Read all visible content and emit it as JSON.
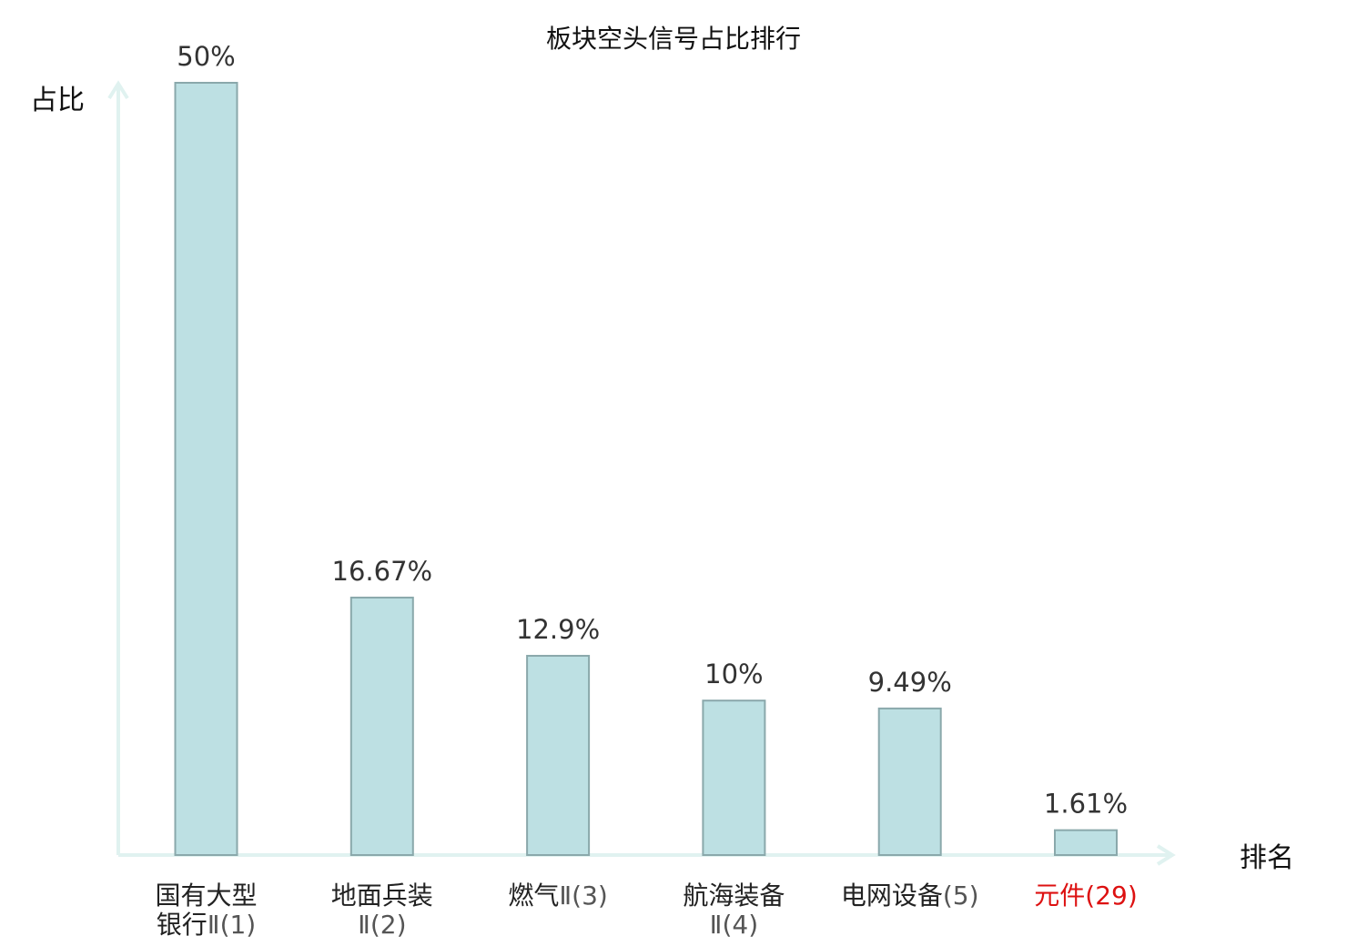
{
  "chart_data": {
    "type": "bar",
    "title": "板块空头信号占比排行",
    "xlabel": "排名",
    "ylabel": "占比",
    "categories": [
      {
        "name_lines": [
          "国有大型",
          "银行"
        ],
        "rank": "Ⅱ(1)",
        "highlight": false
      },
      {
        "name_lines": [
          "地面兵装"
        ],
        "rank": "Ⅱ(2)",
        "highlight": false
      },
      {
        "name_lines": [
          "燃气"
        ],
        "rank": "Ⅱ(3)",
        "highlight": false
      },
      {
        "name_lines": [
          "航海装备"
        ],
        "rank": "Ⅱ(4)",
        "highlight": false
      },
      {
        "name_lines": [
          "电网设备"
        ],
        "rank": "(5)",
        "highlight": false
      },
      {
        "name_lines": [
          "元件"
        ],
        "rank": "(29)",
        "highlight": true
      }
    ],
    "values": [
      50,
      16.67,
      12.9,
      10,
      9.49,
      1.61
    ],
    "value_labels": [
      "50%",
      "16.67%",
      "12.9%",
      "10%",
      "9.49%",
      "1.61%"
    ],
    "ylim": [
      0,
      50
    ],
    "grid": false,
    "legend": "none",
    "colors": {
      "bar_fill": "#bde0e3",
      "bar_stroke": "#8aa8ab",
      "axis": "#e0f2f0",
      "label_text": "#222222",
      "rank_text": "#555555",
      "highlight": "#dd1111"
    }
  }
}
